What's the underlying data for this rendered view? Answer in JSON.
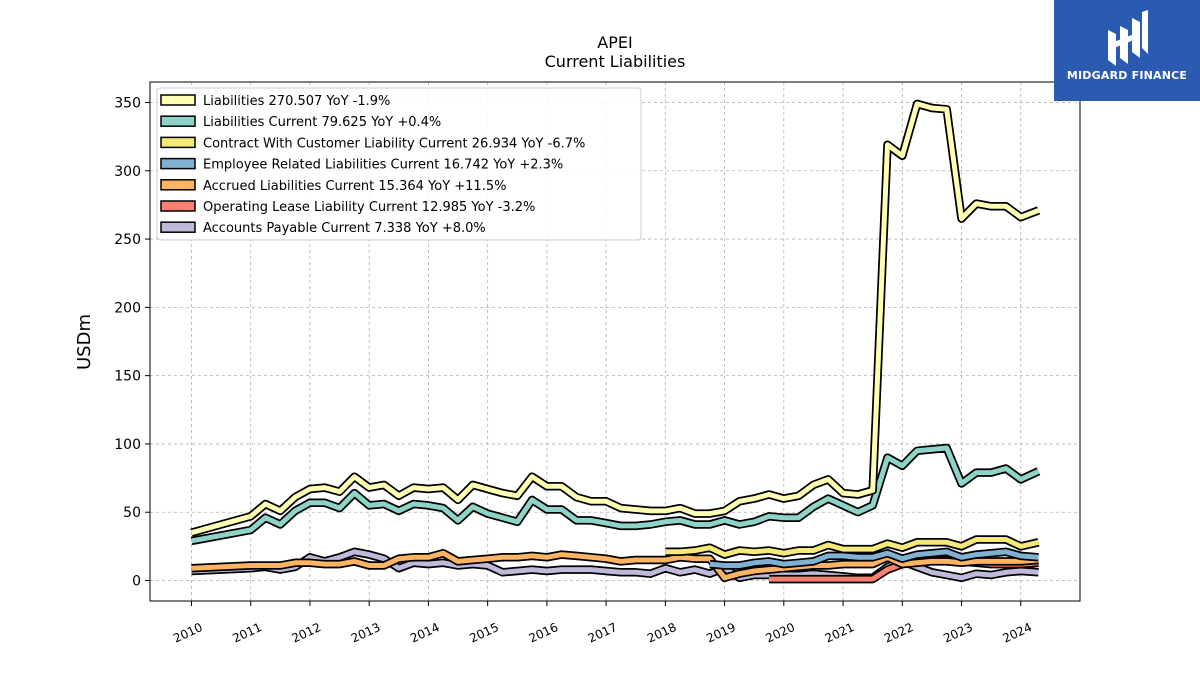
{
  "chart_data": {
    "type": "line",
    "title": "APEI",
    "subtitle": "Current  Liabilities",
    "ylabel": "USDm",
    "xlabel": "",
    "ylim": [
      -15,
      365
    ],
    "xlim": [
      2009.3,
      2025.0
    ],
    "yticks": [
      0,
      50,
      100,
      150,
      200,
      250,
      300,
      350
    ],
    "xticks": [
      "2010",
      "2011",
      "2012",
      "2013",
      "2014",
      "2015",
      "2016",
      "2017",
      "2018",
      "2019",
      "2020",
      "2021",
      "2022",
      "2023",
      "2024"
    ],
    "grid": true,
    "legend_position": "top-left",
    "series": [
      {
        "name": "Liabilities  270.507 YoY -1.9%",
        "color": "#ffffb3",
        "x": [
          2010.0,
          2011.0,
          2011.25,
          2011.5,
          2011.75,
          2012.0,
          2012.25,
          2012.5,
          2012.75,
          2013.0,
          2013.25,
          2013.5,
          2013.75,
          2014.0,
          2014.25,
          2014.5,
          2014.75,
          2015.0,
          2015.25,
          2015.5,
          2015.75,
          2016.0,
          2016.25,
          2016.5,
          2016.75,
          2017.0,
          2017.25,
          2017.5,
          2017.75,
          2018.0,
          2018.25,
          2018.5,
          2018.75,
          2019.0,
          2019.25,
          2019.5,
          2019.75,
          2020.0,
          2020.25,
          2020.5,
          2020.75,
          2021.0,
          2021.25,
          2021.5,
          2021.75,
          2022.0,
          2022.25,
          2022.5,
          2022.75,
          2023.0,
          2023.25,
          2023.5,
          2023.75,
          2024.0,
          2024.3
        ],
        "values": [
          35,
          47,
          56,
          51,
          61,
          67,
          68,
          65,
          76,
          68,
          70,
          62,
          68,
          67,
          68,
          59,
          70,
          67,
          64,
          62,
          76,
          69,
          69,
          61,
          58,
          58,
          53,
          52,
          51,
          51,
          53,
          49,
          49,
          51,
          58,
          60,
          63,
          60,
          62,
          70,
          74,
          64,
          63,
          66,
          319,
          311,
          349,
          346,
          345,
          265,
          276,
          274,
          274,
          266,
          271
        ]
      },
      {
        "name": "Liabilities Current  79.625 YoY +0.4%",
        "color": "#8dd3c7",
        "x": [
          2010.0,
          2011.0,
          2011.25,
          2011.5,
          2011.75,
          2012.0,
          2012.25,
          2012.5,
          2012.75,
          2013.0,
          2013.25,
          2013.5,
          2013.75,
          2014.0,
          2014.25,
          2014.5,
          2014.75,
          2015.0,
          2015.25,
          2015.5,
          2015.75,
          2016.0,
          2016.25,
          2016.5,
          2016.75,
          2017.0,
          2017.25,
          2017.5,
          2017.75,
          2018.0,
          2018.25,
          2018.5,
          2018.75,
          2019.0,
          2019.25,
          2019.5,
          2019.75,
          2020.0,
          2020.25,
          2020.5,
          2020.75,
          2021.0,
          2021.25,
          2021.5,
          2021.75,
          2022.0,
          2022.25,
          2022.5,
          2022.75,
          2023.0,
          2023.25,
          2023.5,
          2023.75,
          2024.0,
          2024.3
        ],
        "values": [
          29,
          37,
          46,
          41,
          51,
          57,
          57,
          53,
          64,
          55,
          56,
          51,
          56,
          55,
          53,
          44,
          54,
          49,
          46,
          43,
          59,
          52,
          52,
          44,
          44,
          42,
          40,
          40,
          41,
          43,
          44,
          41,
          41,
          44,
          41,
          43,
          47,
          46,
          46,
          54,
          60,
          55,
          50,
          55,
          90,
          84,
          95,
          96,
          97,
          71,
          79,
          79,
          82,
          74,
          80
        ]
      },
      {
        "name": "Contract With Customer Liability Current  26.934 YoY -6.7%",
        "color": "#f6e97a",
        "x": [
          2018.0,
          2018.25,
          2018.5,
          2018.75,
          2019.0,
          2019.25,
          2019.5,
          2019.75,
          2020.0,
          2020.25,
          2020.5,
          2020.75,
          2021.0,
          2021.25,
          2021.5,
          2021.75,
          2022.0,
          2022.25,
          2022.5,
          2022.75,
          2023.0,
          2023.25,
          2023.5,
          2023.75,
          2024.0,
          2024.3
        ],
        "values": [
          21,
          21,
          22,
          24,
          19,
          22,
          21,
          22,
          20,
          22,
          22,
          26,
          23,
          23,
          23,
          27,
          24,
          28,
          28,
          28,
          25,
          30,
          30,
          30,
          25,
          28
        ]
      },
      {
        "name": "Employee Related Liabilities Current  16.742 YoY +2.3%",
        "color": "#80b1d3",
        "x": [
          2018.75,
          2019.0,
          2019.25,
          2019.5,
          2019.75,
          2020.0,
          2020.25,
          2020.5,
          2020.75,
          2021.0,
          2021.25,
          2021.5,
          2021.75,
          2022.0,
          2022.25,
          2022.5,
          2022.75,
          2023.0,
          2023.25,
          2023.5,
          2023.75,
          2024.0,
          2024.3
        ],
        "values": [
          12,
          11,
          11,
          13,
          14,
          12,
          13,
          14,
          18,
          18,
          17,
          17,
          20,
          16,
          19,
          20,
          21,
          17,
          19,
          20,
          21,
          18,
          17
        ]
      },
      {
        "name": "Accrued Liabilities Current  15.364 YoY +11.5%",
        "color": "#fdb462",
        "x": [
          2010.0,
          2011.0,
          2011.25,
          2011.5,
          2011.75,
          2012.0,
          2012.25,
          2012.5,
          2012.75,
          2013.0,
          2013.25,
          2013.5,
          2013.75,
          2014.0,
          2014.25,
          2014.5,
          2014.75,
          2015.0,
          2015.25,
          2015.5,
          2015.75,
          2016.0,
          2016.25,
          2016.5,
          2016.75,
          2017.0,
          2017.25,
          2017.5,
          2017.75,
          2018.0,
          2018.25,
          2018.5,
          2018.75,
          2019.0,
          2019.25,
          2019.5,
          2019.75,
          2020.0,
          2020.25,
          2020.5,
          2020.75,
          2021.0,
          2021.25,
          2021.5,
          2021.75,
          2022.0,
          2022.25,
          2022.5,
          2022.75,
          2023.0,
          2023.25,
          2023.5,
          2023.75,
          2024.0,
          2024.3
        ],
        "values": [
          9,
          11,
          11,
          11,
          13,
          13,
          12,
          12,
          14,
          11,
          11,
          16,
          17,
          17,
          20,
          14,
          15,
          16,
          17,
          17,
          18,
          17,
          19,
          18,
          17,
          16,
          14,
          15,
          15,
          15,
          17,
          16,
          16,
          2,
          5,
          7,
          8,
          9,
          10,
          11,
          11,
          12,
          12,
          12,
          17,
          12,
          13,
          14,
          14,
          13,
          14,
          14,
          14,
          14,
          15
        ]
      },
      {
        "name": "Operating Lease Liability Current  12.985 YoY -3.2%",
        "color": "#fb8072",
        "x": [
          2019.75,
          2020.0,
          2020.25,
          2020.5,
          2020.75,
          2021.0,
          2021.25,
          2021.5,
          2021.75,
          2022.0,
          2022.25,
          2022.5,
          2022.75,
          2023.0,
          2023.25,
          2023.5,
          2023.75,
          2024.0,
          2024.3
        ],
        "values": [
          1,
          1,
          1,
          1,
          1,
          1,
          1,
          1,
          8,
          12,
          14,
          15,
          15,
          14,
          13,
          12,
          12,
          12,
          13
        ]
      },
      {
        "name": "Accounts Payable Current  7.338 YoY +8.0%",
        "color": "#bebada",
        "x": [
          2010.0,
          2011.0,
          2011.25,
          2011.5,
          2011.75,
          2012.0,
          2012.25,
          2012.5,
          2012.75,
          2013.0,
          2013.25,
          2013.5,
          2013.75,
          2014.0,
          2014.25,
          2014.5,
          2014.75,
          2015.0,
          2015.25,
          2015.5,
          2015.75,
          2016.0,
          2016.25,
          2016.5,
          2016.75,
          2017.0,
          2017.25,
          2017.5,
          2017.75,
          2018.0,
          2018.25,
          2018.5,
          2018.75,
          2019.0,
          2019.25,
          2019.5,
          2019.75,
          2020.0,
          2020.25,
          2020.5,
          2020.75,
          2021.0,
          2021.25,
          2021.5,
          2021.75,
          2022.0,
          2022.25,
          2022.5,
          2022.75,
          2023.0,
          2023.25,
          2023.5,
          2023.75,
          2024.0,
          2024.3
        ],
        "values": [
          7,
          9,
          10,
          8,
          10,
          17,
          14,
          17,
          21,
          19,
          16,
          9,
          13,
          12,
          13,
          11,
          12,
          11,
          6,
          7,
          8,
          7,
          8,
          8,
          8,
          7,
          6,
          6,
          5,
          9,
          6,
          8,
          5,
          9,
          2,
          4,
          4,
          4,
          4,
          5,
          4,
          3,
          2,
          2,
          10,
          14,
          10,
          6,
          4,
          2,
          5,
          4,
          6,
          7,
          6
        ]
      }
    ]
  },
  "logo": {
    "text": "MIDGARD FINANCE",
    "color": "#2b5bb0"
  }
}
